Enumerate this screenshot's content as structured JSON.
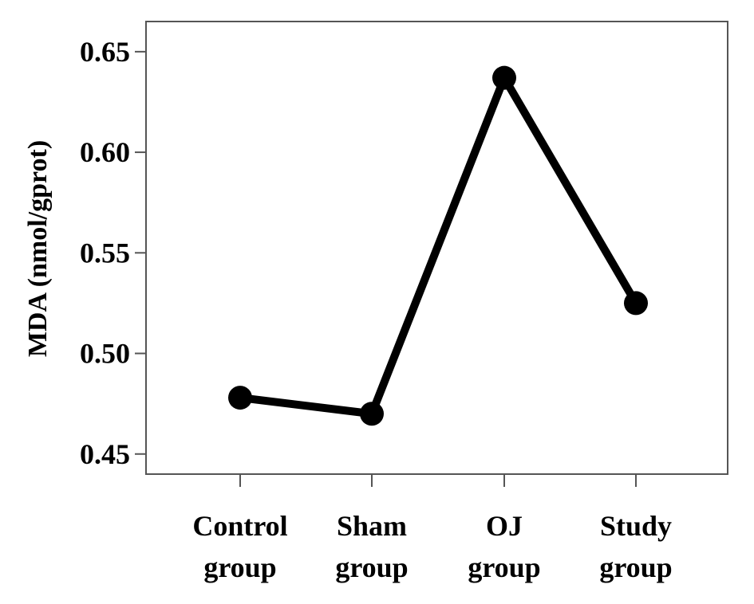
{
  "chart_data": {
    "type": "line",
    "title": "",
    "ylabel": "MDA (nmol/gprot)",
    "xlabel": "",
    "categories": [
      [
        "Control",
        "group"
      ],
      [
        "Sham",
        "group"
      ],
      [
        "OJ",
        "group"
      ],
      [
        "Study",
        "group"
      ]
    ],
    "values": [
      0.478,
      0.47,
      0.637,
      0.525
    ],
    "yticks": [
      "0.45",
      "0.50",
      "0.55",
      "0.60",
      "0.65"
    ],
    "ylim": [
      0.44,
      0.665
    ],
    "grid": false,
    "legend": "none",
    "line_color": "#000000"
  }
}
